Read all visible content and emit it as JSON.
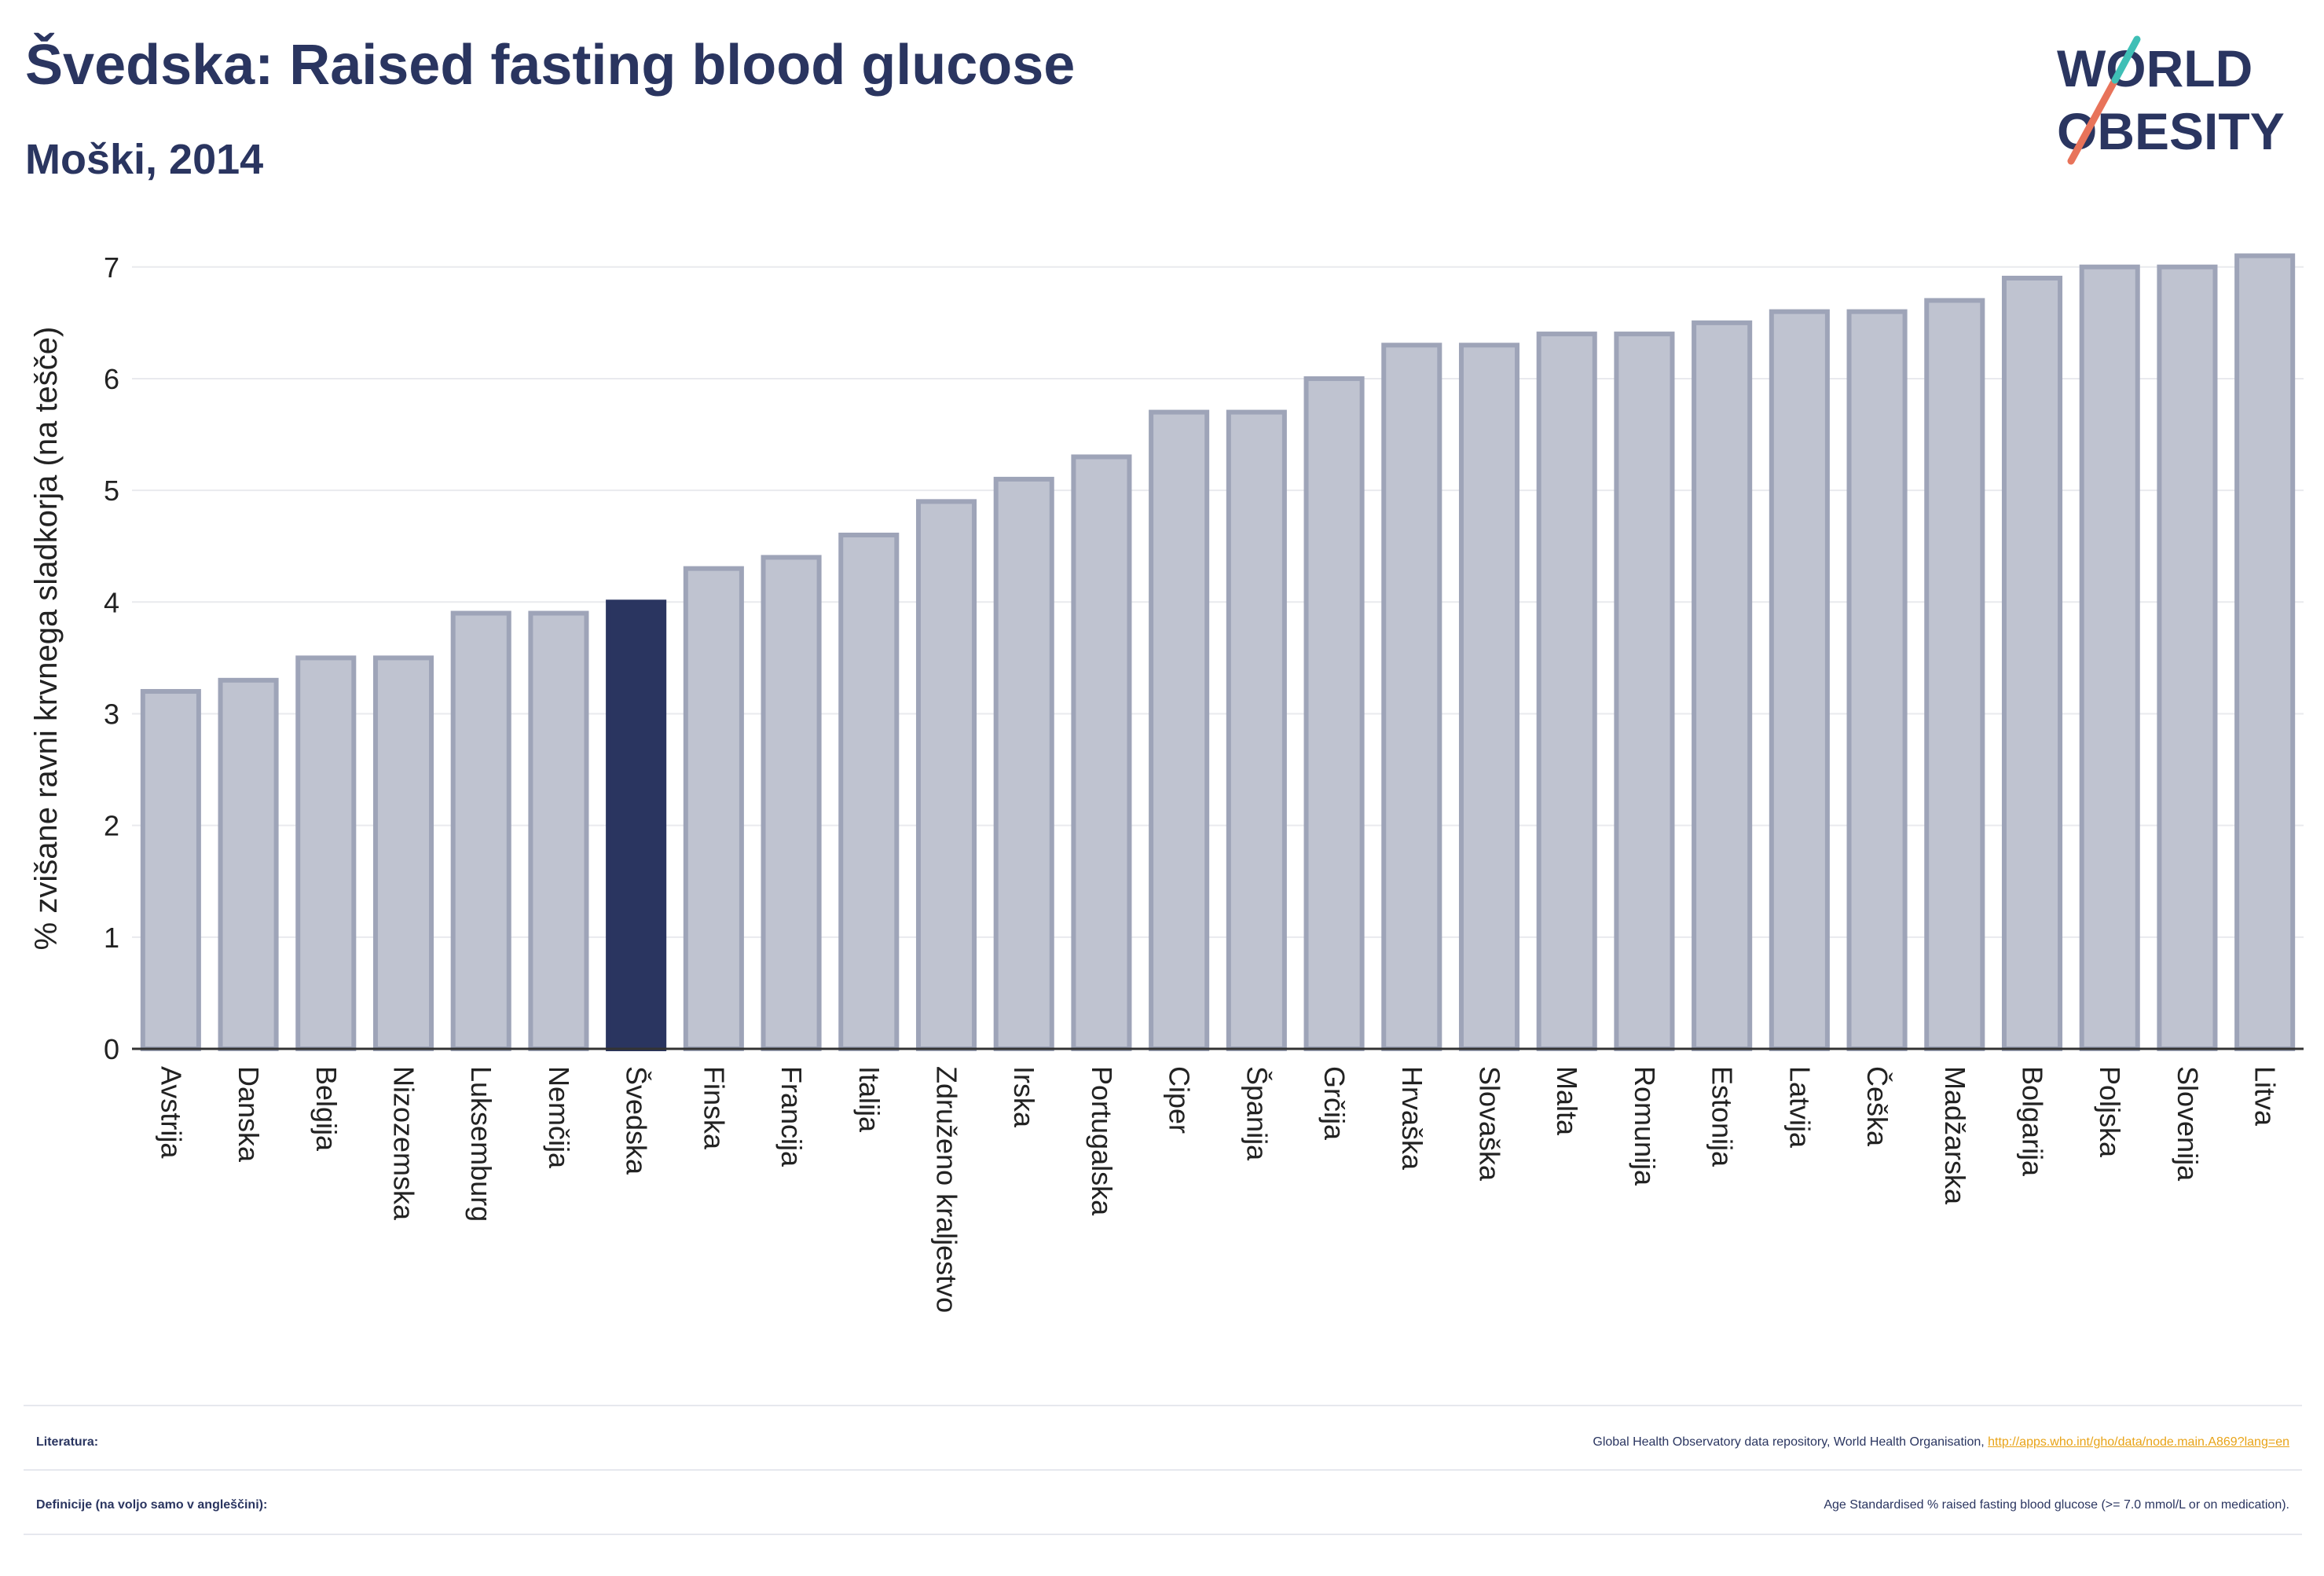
{
  "header": {
    "title": "Švedska: Raised fasting blood glucose",
    "subtitle": "Moški, 2014"
  },
  "logo": {
    "line1": "WORLD",
    "line2": "OBESITY",
    "text_color": "#2a3560",
    "slash_colors": [
      "#e8735a",
      "#3fbfb6"
    ]
  },
  "chart_data": {
    "type": "bar",
    "ylabel": "% zvišane ravni krvnega sladkorja (na tešče)",
    "xlabel": "",
    "ylim": [
      0,
      7.35
    ],
    "yticks": [
      0,
      1,
      2,
      3,
      4,
      5,
      6,
      7
    ],
    "grid": true,
    "highlight": "Švedska",
    "colors": {
      "bar": "#bfc3d0",
      "bar_border": "#9ea4b8",
      "highlight": "#2a3560"
    },
    "categories": [
      "Avstrija",
      "Danska",
      "Belgija",
      "Nizozemska",
      "Luksemburg",
      "Nemčija",
      "Švedska",
      "Finska",
      "Francija",
      "Italija",
      "Združeno kraljestvo",
      "Irska",
      "Portugalska",
      "Ciper",
      "Španija",
      "Grčija",
      "Hrvaška",
      "Slovaška",
      "Malta",
      "Romunija",
      "Estonija",
      "Latvija",
      "Češka",
      "Madžarska",
      "Bolgarija",
      "Poljska",
      "Slovenija",
      "Litva"
    ],
    "values": [
      3.2,
      3.3,
      3.5,
      3.5,
      3.9,
      3.9,
      4.0,
      4.3,
      4.4,
      4.6,
      4.9,
      5.1,
      5.3,
      5.7,
      5.7,
      6.0,
      6.3,
      6.3,
      6.4,
      6.4,
      6.5,
      6.6,
      6.6,
      6.7,
      6.9,
      7.0,
      7.0,
      7.1
    ]
  },
  "footer": {
    "sources_label": "Literatura:",
    "sources_text": "Global Health Observatory data repository, World Health Organisation, ",
    "sources_link": "http://apps.who.int/gho/data/node.main.A869?lang=en",
    "definitions_label": "Definicije (na voljo samo v angleščini):",
    "definitions_text": "Age Standardised % raised fasting blood glucose (>= 7.0 mmol/L or on medication)."
  }
}
